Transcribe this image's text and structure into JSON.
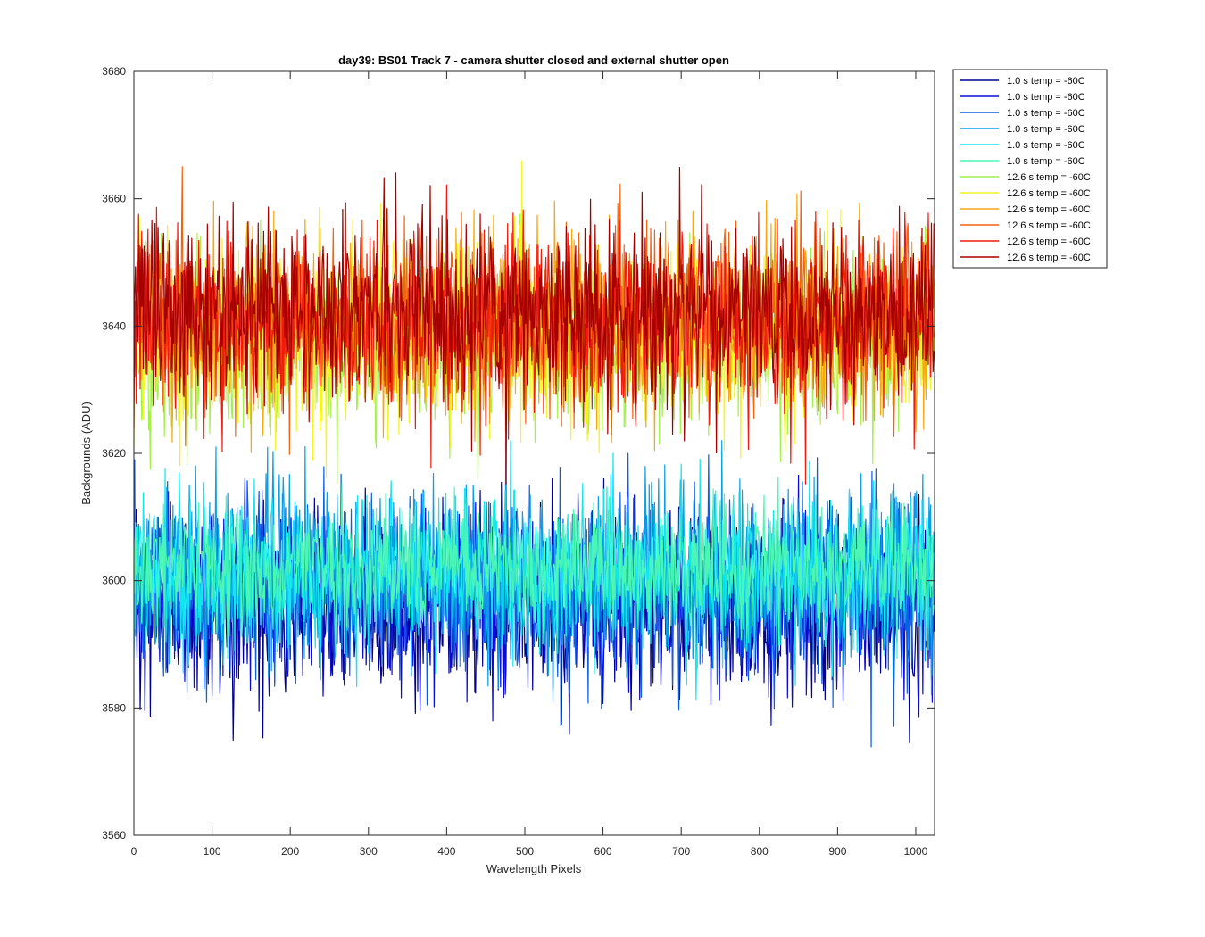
{
  "chart_data": {
    "type": "line",
    "title": "day39: BS01  Track 7 - camera shutter closed and external shutter open",
    "xlabel": "Wavelength Pixels",
    "ylabel": "Backgrounds (ADU)",
    "xlim": [
      0,
      1024
    ],
    "ylim": [
      3560,
      3680
    ],
    "xticks": [
      0,
      100,
      200,
      300,
      400,
      500,
      600,
      700,
      800,
      900,
      1000
    ],
    "yticks": [
      3560,
      3580,
      3600,
      3620,
      3640,
      3660,
      3680
    ],
    "grid": false,
    "legend_position": "outside-top-right",
    "x_points": 1024,
    "series": [
      {
        "name": "1.0 s temp = -60C",
        "color": "#00008f",
        "mean": 3596,
        "spread": 7,
        "min": 3569,
        "max": 3616,
        "seed": 11
      },
      {
        "name": "1.0 s temp = -60C",
        "color": "#0a0ad8",
        "mean": 3597,
        "spread": 7,
        "min": 3571,
        "max": 3618,
        "seed": 23
      },
      {
        "name": "1.0 s temp = -60C",
        "color": "#0b5fe6",
        "mean": 3599,
        "spread": 7,
        "min": 3573,
        "max": 3620,
        "seed": 37
      },
      {
        "name": "1.0 s temp = -60C",
        "color": "#0a9fe8",
        "mean": 3601,
        "spread": 7,
        "min": 3575,
        "max": 3622,
        "seed": 41
      },
      {
        "name": "1.0 s temp = -60C",
        "color": "#12e6ee",
        "mean": 3601,
        "spread": 6,
        "min": 3576,
        "max": 3620,
        "seed": 53
      },
      {
        "name": "1.0 s temp = -60C",
        "color": "#4cf7b5",
        "mean": 3602,
        "spread": 5,
        "min": 3570,
        "max": 3618,
        "seed": 67
      },
      {
        "name": "12.6 s temp = -60C",
        "color": "#a6f04e",
        "mean": 3637,
        "spread": 7,
        "min": 3605,
        "max": 3664,
        "seed": 71
      },
      {
        "name": "12.6 s temp = -60C",
        "color": "#f4f427",
        "mean": 3638,
        "spread": 7,
        "min": 3606,
        "max": 3667,
        "seed": 83
      },
      {
        "name": "12.6 s temp = -60C",
        "color": "#f5a810",
        "mean": 3640,
        "spread": 7,
        "min": 3610,
        "max": 3674,
        "seed": 97
      },
      {
        "name": "12.6 s temp = -60C",
        "color": "#f46410",
        "mean": 3641,
        "spread": 7,
        "min": 3612,
        "max": 3678,
        "seed": 101
      },
      {
        "name": "12.6 s temp = -60C",
        "color": "#f01a0d",
        "mean": 3641,
        "spread": 7,
        "min": 3612,
        "max": 3672,
        "seed": 113
      },
      {
        "name": "12.6 s temp = -60C",
        "color": "#a50000",
        "mean": 3642,
        "spread": 7,
        "min": 3615,
        "max": 3674,
        "seed": 127
      }
    ]
  }
}
